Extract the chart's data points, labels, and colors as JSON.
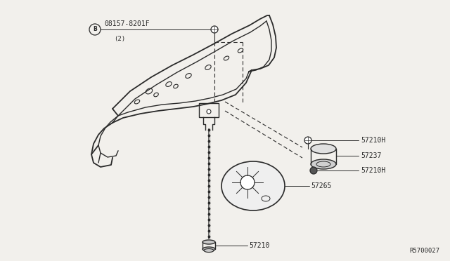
{
  "bg_color": "#f2f0ec",
  "line_color": "#2a2a2a",
  "text_color": "#2a2a2a",
  "ref_code": "R5700027",
  "figsize": [
    6.4,
    3.72
  ],
  "dpi": 100,
  "bracket_label": "08157-8201F",
  "bracket_sub": "(2)",
  "labels_right": [
    "57210H",
    "57237",
    "57210H"
  ],
  "label_disk": "57265",
  "label_cable_end": "57210"
}
